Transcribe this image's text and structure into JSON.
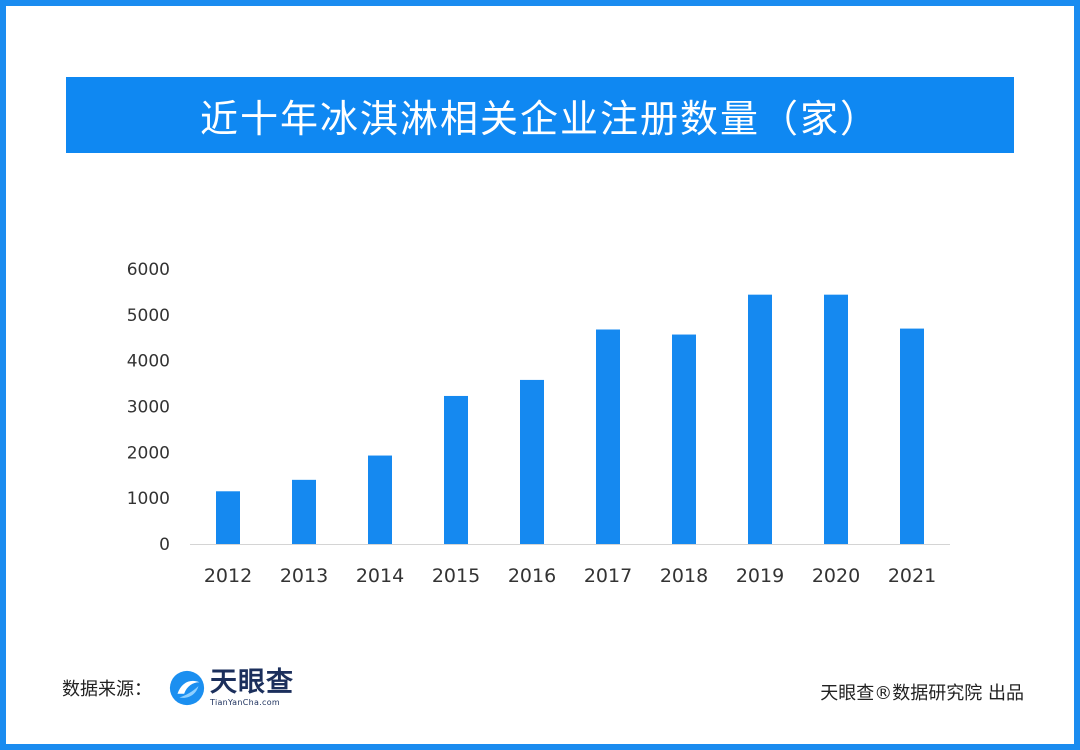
{
  "title": "近十年冰淇淋相关企业注册数量（家）",
  "footer": {
    "source_label": "数据来源：",
    "logo_cn": "天眼查",
    "logo_en": "TianYanCha.com",
    "credit": "天眼查®数据研究院 出品"
  },
  "colors": {
    "frame": "#1a8cf0",
    "banner": "#0f88f2",
    "bar": "#1589f0"
  },
  "chart_data": {
    "type": "bar",
    "categories": [
      "2012",
      "2013",
      "2014",
      "2015",
      "2016",
      "2017",
      "2018",
      "2019",
      "2020",
      "2021"
    ],
    "values": [
      1150,
      1400,
      1930,
      3230,
      3580,
      4680,
      4570,
      5440,
      5440,
      4700
    ],
    "yticks": [
      "0",
      "1000",
      "2000",
      "3000",
      "4000",
      "5000",
      "6000"
    ],
    "ylim": [
      0,
      6000
    ],
    "grid": false,
    "legend": "none"
  }
}
